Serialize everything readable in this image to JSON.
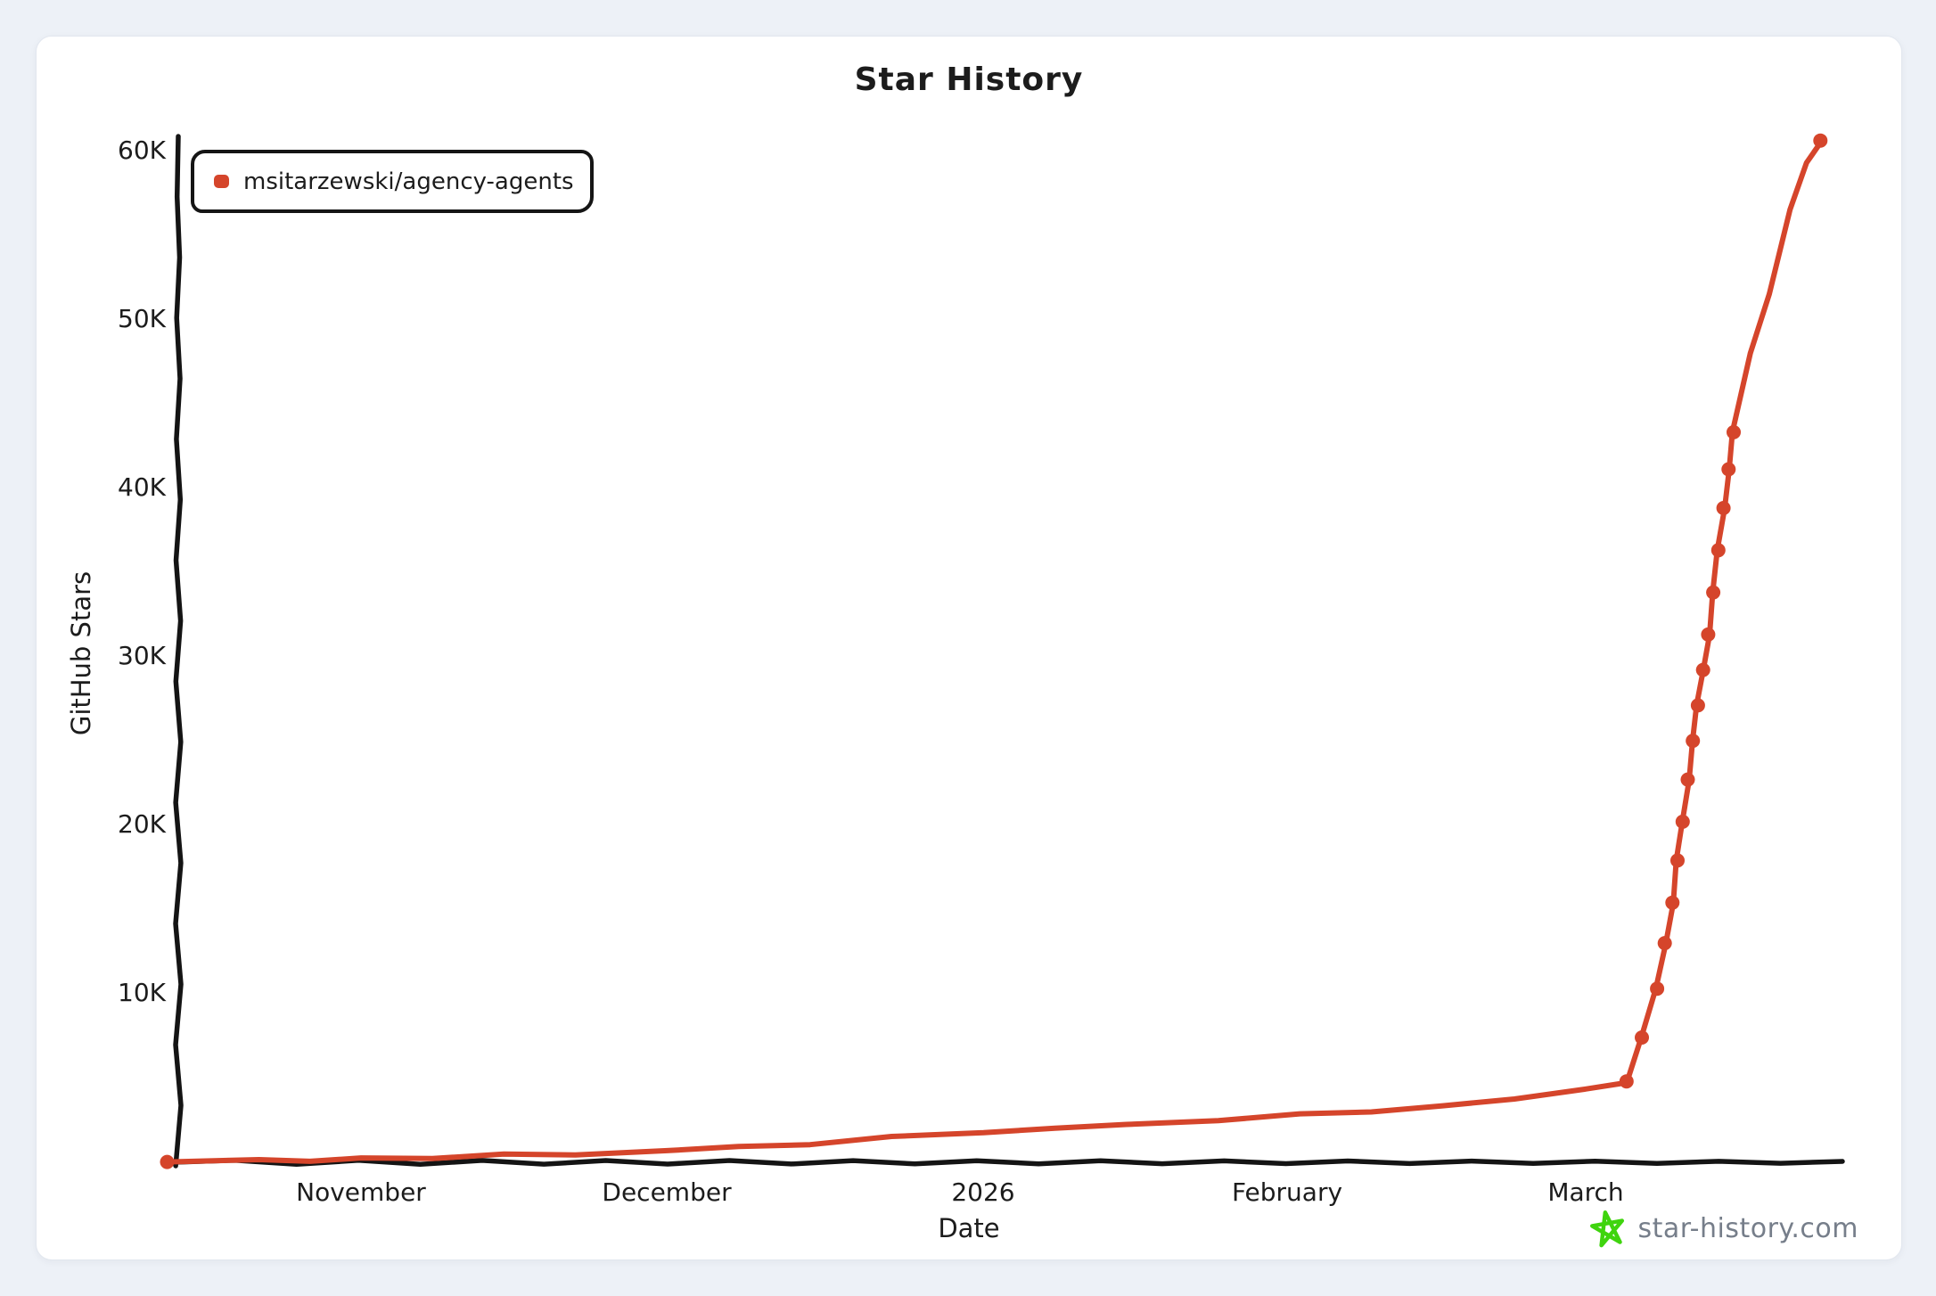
{
  "footer": {
    "brand": "star-history.com",
    "star_color": "#3fd40e"
  },
  "colors": {
    "series": "#d5452b",
    "axis": "#141414",
    "page_background": "#edf1f7",
    "card_background": "#ffffff",
    "brand_text": "#767e8a"
  },
  "chart_data": {
    "type": "line",
    "title": "Star History",
    "xlabel": "Date",
    "ylabel": "GitHub Stars",
    "legend_position": "top-left",
    "grid": false,
    "x_tick_labels": [
      "November",
      "December",
      "2026",
      "February",
      "March"
    ],
    "x_tick_dates": [
      "2025-11-01",
      "2025-12-01",
      "2026-01-01",
      "2026-02-01",
      "2026-03-01"
    ],
    "y_tick_labels": [
      "60K",
      "50K",
      "40K",
      "30K",
      "20K",
      "10K"
    ],
    "y_ticks": [
      10000,
      20000,
      30000,
      40000,
      50000,
      60000
    ],
    "ylim": [
      0,
      61000
    ],
    "x_range": [
      "2025-10-13",
      "2026-03-26"
    ],
    "series": [
      {
        "name": "msitarzewski/agency-agents",
        "color": "#d5452b",
        "points": [
          [
            "2025-10-13",
            20,
            true
          ],
          [
            "2025-10-22",
            80,
            false
          ],
          [
            "2025-11-01",
            200,
            false
          ],
          [
            "2025-11-08",
            300,
            false
          ],
          [
            "2025-11-15",
            400,
            false
          ],
          [
            "2025-11-22",
            520,
            false
          ],
          [
            "2025-12-01",
            700,
            false
          ],
          [
            "2025-12-08",
            900,
            false
          ],
          [
            "2025-12-15",
            1100,
            false
          ],
          [
            "2025-12-23",
            1450,
            false
          ],
          [
            "2026-01-01",
            1800,
            false
          ],
          [
            "2026-01-08",
            2000,
            false
          ],
          [
            "2026-01-15",
            2250,
            false
          ],
          [
            "2026-01-24",
            2550,
            false
          ],
          [
            "2026-02-01",
            2800,
            false
          ],
          [
            "2026-02-08",
            3050,
            false
          ],
          [
            "2026-02-15",
            3300,
            false
          ],
          [
            "2026-02-22",
            3800,
            false
          ],
          [
            "2026-03-01",
            4300,
            false
          ],
          [
            "2026-03-05",
            4800,
            true
          ],
          [
            "2026-03-06T12:00",
            7400,
            true
          ],
          [
            "2026-03-08",
            10300,
            true
          ],
          [
            "2026-03-08T18:00",
            13000,
            true
          ],
          [
            "2026-03-09T12:00",
            15400,
            true
          ],
          [
            "2026-03-10",
            17900,
            true
          ],
          [
            "2026-03-10T12:00",
            20200,
            true
          ],
          [
            "2026-03-11",
            22700,
            true
          ],
          [
            "2026-03-11T12:00",
            25000,
            true
          ],
          [
            "2026-03-12",
            27100,
            true
          ],
          [
            "2026-03-12T12:00",
            29200,
            true
          ],
          [
            "2026-03-13",
            31300,
            true
          ],
          [
            "2026-03-13T12:00",
            33800,
            true
          ],
          [
            "2026-03-14",
            36300,
            true
          ],
          [
            "2026-03-14T12:00",
            38800,
            true
          ],
          [
            "2026-03-15",
            41100,
            true
          ],
          [
            "2026-03-15T12:00",
            43300,
            true
          ],
          [
            "2026-03-17",
            48000,
            false
          ],
          [
            "2026-03-19",
            51500,
            false
          ],
          [
            "2026-03-21",
            56500,
            false
          ],
          [
            "2026-03-22T12:00",
            59300,
            false
          ],
          [
            "2026-03-24",
            60600,
            true
          ]
        ]
      }
    ]
  }
}
